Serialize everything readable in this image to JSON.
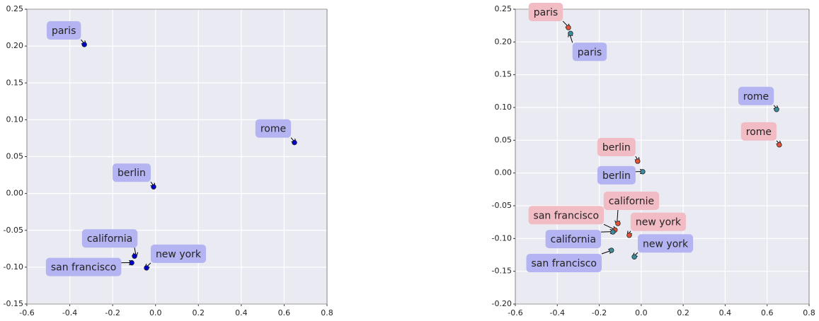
{
  "chart_data": [
    {
      "type": "scatter",
      "xlim": [
        -0.6,
        0.8
      ],
      "ylim": [
        -0.15,
        0.25
      ],
      "xticks": [
        -0.6,
        -0.4,
        -0.2,
        {
          "value": 0,
          "label": "0.0"
        },
        0.2,
        0.4,
        0.6,
        0.8
      ],
      "yticks": [
        -0.15,
        {
          "value": -0.1,
          "label": "-0.10"
        },
        -0.05,
        {
          "value": 0,
          "label": "0.00"
        },
        0.05,
        {
          "value": 0.1,
          "label": "0.10"
        },
        0.15,
        {
          "value": 0.2,
          "label": "0.20"
        },
        0.25
      ],
      "grid": true,
      "series": [
        {
          "color": "#0000cc",
          "label_color": "#b4b4f2",
          "labels": [
            "paris",
            "rome",
            "berlin",
            "california",
            "new york",
            "san francisco"
          ],
          "x": [
            -0.332,
            0.648,
            -0.009,
            -0.098,
            -0.042,
            -0.111
          ],
          "values": [
            0.202,
            0.069,
            0.009,
            -0.085,
            -0.101,
            -0.094
          ]
        }
      ]
    },
    {
      "type": "scatter",
      "xlim": [
        -0.6,
        0.8
      ],
      "ylim": [
        -0.2,
        0.25
      ],
      "xticks": [
        -0.6,
        -0.4,
        -0.2,
        {
          "value": 0,
          "label": "0.0"
        },
        0.2,
        0.4,
        0.6,
        0.8
      ],
      "yticks": [
        {
          "value": -0.2,
          "label": "-0.20"
        },
        -0.15,
        {
          "value": -0.1,
          "label": "-0.10"
        },
        -0.05,
        {
          "value": 0,
          "label": "0.00"
        },
        0.05,
        {
          "value": 0.1,
          "label": "0.10"
        },
        0.15,
        {
          "value": 0.2,
          "label": "0.20"
        },
        0.25
      ],
      "grid": true,
      "series": [
        {
          "color": "#e2533a",
          "label_color": "#f2bcc4",
          "labels": [
            "paris",
            "rome",
            "berlin",
            "californie",
            "new york",
            "san francisco"
          ],
          "x": [
            -0.347,
            0.658,
            -0.017,
            -0.111,
            -0.057,
            -0.125
          ],
          "values": [
            0.222,
            0.043,
            0.018,
            -0.077,
            -0.095,
            -0.087
          ]
        },
        {
          "color": "#3a8c9c",
          "label_color": "#b4b4f2",
          "labels": [
            "paris",
            "rome",
            "berlin",
            "california",
            "new york",
            "san francisco"
          ],
          "x": [
            -0.337,
            0.645,
            0.007,
            -0.135,
            -0.033,
            -0.142
          ],
          "values": [
            0.213,
            0.097,
            0.002,
            -0.09,
            -0.128,
            -0.118
          ]
        }
      ]
    }
  ]
}
